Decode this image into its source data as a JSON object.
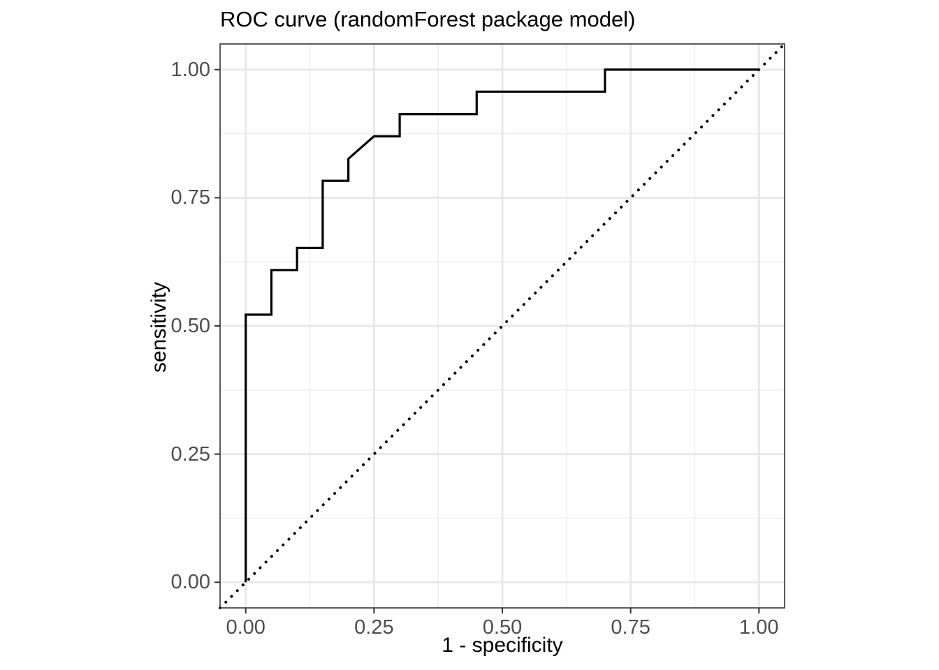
{
  "figure": {
    "title": "ROC curve (randomForest package model)",
    "x_axis": {
      "label": "1 - specificity",
      "tick_labels": [
        "0.00",
        "0.25",
        "0.50",
        "0.75",
        "1.00"
      ],
      "tick_values": [
        0,
        0.25,
        0.5,
        0.75,
        1
      ],
      "minor_ticks": [
        0.125,
        0.375,
        0.625,
        0.875
      ]
    },
    "y_axis": {
      "label": "sensitivity",
      "tick_labels": [
        "0.00",
        "0.25",
        "0.50",
        "0.75",
        "1.00"
      ],
      "tick_values": [
        0,
        0.25,
        0.5,
        0.75,
        1
      ],
      "minor_ticks": [
        0.125,
        0.375,
        0.625,
        0.875
      ]
    }
  },
  "chart_data": {
    "type": "line",
    "title": "ROC curve (randomForest package model)",
    "xlabel": "1 - specificity",
    "ylabel": "sensitivity",
    "xlim": [
      -0.05,
      1.05
    ],
    "ylim": [
      -0.05,
      1.05
    ],
    "grid": "major at 0.25 steps + minor at 0.125 steps, light gray on white panel",
    "legend_position": "none",
    "series": [
      {
        "name": "roc-curve",
        "style": "solid",
        "color": "#000000",
        "stroke_width": 3.2,
        "points": [
          [
            0,
            0
          ],
          [
            0,
            0.522
          ],
          [
            0.05,
            0.522
          ],
          [
            0.05,
            0.609
          ],
          [
            0.1,
            0.609
          ],
          [
            0.1,
            0.652
          ],
          [
            0.15,
            0.652
          ],
          [
            0.15,
            0.783
          ],
          [
            0.2,
            0.783
          ],
          [
            0.2,
            0.826
          ],
          [
            0.25,
            0.87
          ],
          [
            0.3,
            0.87
          ],
          [
            0.3,
            0.913
          ],
          [
            0.45,
            0.913
          ],
          [
            0.45,
            0.957
          ],
          [
            0.7,
            0.957
          ],
          [
            0.7,
            1.0
          ],
          [
            1.0,
            1.0
          ]
        ]
      },
      {
        "name": "chance-diagonal",
        "style": "dotted",
        "color": "#000000",
        "stroke_width": 4,
        "points": [
          [
            -0.05,
            -0.05
          ],
          [
            1.05,
            1.05
          ]
        ]
      }
    ]
  },
  "colors": {
    "panel_background": "#ffffff",
    "grid_major": "#e8e8e8",
    "grid_minor": "#ededed",
    "panel_border": "#333333",
    "tick_mark": "#333333",
    "tick_label": "#4d4d4d",
    "axis_title": "#000000",
    "title": "#000000",
    "roc_line": "#000000"
  }
}
